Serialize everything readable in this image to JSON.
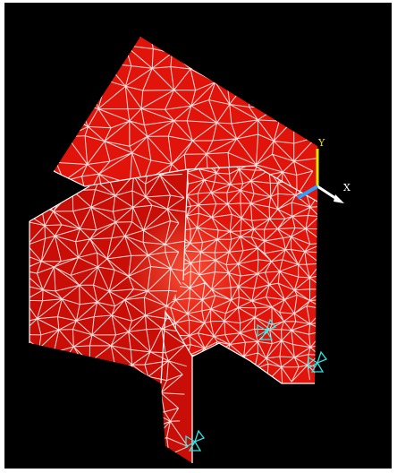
{
  "viewport": {
    "background": "#000000",
    "mesh_fill": "#e0140a",
    "mesh_shade": "#c80e06",
    "mesh_highlight": "#ff4a30",
    "edge_color": "#ffffff",
    "constraint_color": "#2ee6e6"
  },
  "triad": {
    "y_label": "Y",
    "x_label": "X",
    "y_color": "#e6e600",
    "x_color": "#ffffff",
    "z_color": "#2aa0ff"
  },
  "constraints": [
    {
      "name": "constraint-node-1",
      "icon": "displacement-constraint-icon"
    },
    {
      "name": "constraint-node-2",
      "icon": "displacement-constraint-icon"
    },
    {
      "name": "constraint-node-3",
      "icon": "displacement-constraint-icon"
    }
  ]
}
